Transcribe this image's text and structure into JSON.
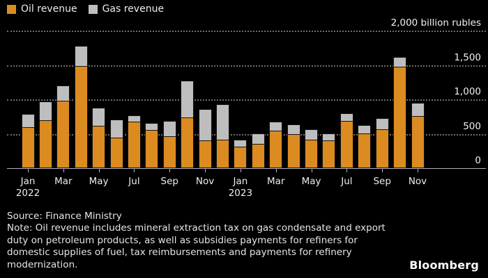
{
  "legend": {
    "items": [
      {
        "label": "Oil revenue",
        "color": "#DC8B20"
      },
      {
        "label": "Gas revenue",
        "color": "#BEBEBE"
      }
    ]
  },
  "y_axis": {
    "ticks": [
      {
        "value": 2000,
        "label": "2,000 billion rubles"
      },
      {
        "value": 1500,
        "label": "1,500"
      },
      {
        "value": 1000,
        "label": "1,000"
      },
      {
        "value": 500,
        "label": "500"
      },
      {
        "value": 0,
        "label": "0"
      }
    ]
  },
  "x_axis": {
    "tick_labels": [
      {
        "month": "Jan",
        "year": "2022"
      },
      {
        "month": "Mar",
        "year": ""
      },
      {
        "month": "May",
        "year": ""
      },
      {
        "month": "Jul",
        "year": ""
      },
      {
        "month": "Sep",
        "year": ""
      },
      {
        "month": "Nov",
        "year": ""
      },
      {
        "month": "Jan",
        "year": "2023"
      },
      {
        "month": "Mar",
        "year": ""
      },
      {
        "month": "May",
        "year": ""
      },
      {
        "month": "Jul",
        "year": ""
      },
      {
        "month": "Sep",
        "year": ""
      },
      {
        "month": "Nov",
        "year": ""
      }
    ]
  },
  "chart_data": {
    "type": "bar",
    "stacked": true,
    "title": "",
    "ylabel": "billion rubles",
    "ylim": [
      0,
      2000
    ],
    "grid": "dotted-horizontal",
    "legend_position": "top-left",
    "categories": [
      "Jan 2022",
      "Feb 2022",
      "Mar 2022",
      "Apr 2022",
      "May 2022",
      "Jun 2022",
      "Jul 2022",
      "Aug 2022",
      "Sep 2022",
      "Oct 2022",
      "Nov 2022",
      "Dec 2022",
      "Jan 2023",
      "Feb 2023",
      "Mar 2023",
      "Apr 2023",
      "May 2023",
      "Jun 2023",
      "Jul 2023",
      "Aug 2023",
      "Sep 2023",
      "Oct 2023",
      "Nov 2023"
    ],
    "series": [
      {
        "name": "Oil revenue",
        "color": "#DC8B20",
        "values": [
          590,
          690,
          965,
          1470,
          610,
          435,
          670,
          545,
          455,
          725,
          395,
          400,
          300,
          345,
          540,
          490,
          405,
          390,
          675,
          500,
          560,
          1465,
          750
        ]
      },
      {
        "name": "Gas revenue",
        "color": "#BEBEBE",
        "values": [
          195,
          275,
          235,
          305,
          265,
          275,
          95,
          110,
          230,
          545,
          465,
          525,
          110,
          165,
          140,
          145,
          160,
          120,
          120,
          125,
          165,
          155,
          200
        ]
      }
    ]
  },
  "footer": {
    "source": "Source: Finance Ministry",
    "note_lines": [
      "Note: Oil revenue includes mineral extraction tax on gas condensate and export",
      "duty on petroleum products, as well as subsidies payments for refiners for",
      "domestic supplies of fuel, tax reimbursements and payments for refinery",
      "modernization."
    ]
  },
  "brand": "Bloomberg"
}
